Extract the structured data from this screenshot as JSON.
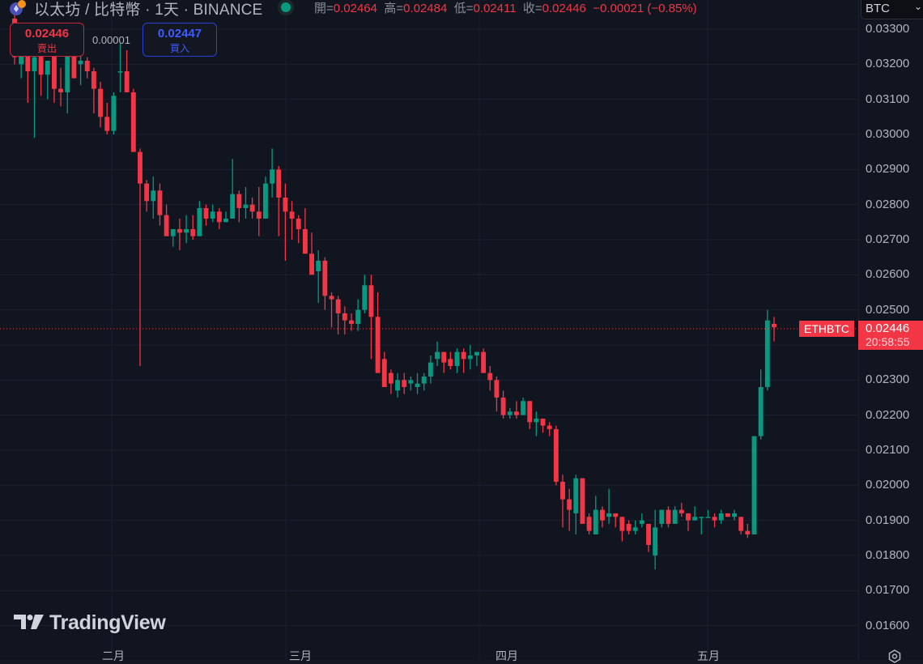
{
  "header": {
    "title": "以太坊 / 比特幣 · 1天 · BINANCE",
    "ohlc": [
      {
        "key": "開=",
        "value": "0.02464"
      },
      {
        "key": "高=",
        "value": "0.02484"
      },
      {
        "key": "低=",
        "value": "0.02411"
      },
      {
        "key": "收=",
        "value": "0.02446"
      }
    ],
    "change": "−0.00021 (−0.85%)"
  },
  "trade": {
    "sell_price": "0.02446",
    "sell_label": "賣出",
    "spread": "0.00001",
    "buy_price": "0.02447",
    "buy_label": "買入"
  },
  "price_axis": {
    "currency": "BTC",
    "labels": [
      "0.03300",
      "0.03200",
      "0.03100",
      "0.03000",
      "0.02900",
      "0.02800",
      "0.02700",
      "0.02600",
      "0.02500",
      "0.02400",
      "0.02300",
      "0.02200",
      "0.02100",
      "0.02000",
      "0.01900",
      "0.01800",
      "0.01700",
      "0.01600"
    ]
  },
  "last_price": {
    "symbol": "ETHBTC",
    "price": "0.02446",
    "countdown": "20:58:55"
  },
  "time_axis": {
    "months": [
      "二月",
      "三月",
      "四月",
      "五月"
    ]
  },
  "branding": {
    "logo_text": "TradingView"
  },
  "colors": {
    "up": "#089981",
    "down": "#f23645",
    "background": "#111520",
    "grid": "#1c2030",
    "text": "#b2b5be"
  },
  "chart_data": {
    "type": "candlestick",
    "title": "以太坊 / 比特幣 · 1天 · BINANCE",
    "symbol": "ETHBTC",
    "interval": "1D",
    "exchange": "BINANCE",
    "xlabel": "",
    "ylabel": "BTC",
    "ylim": [
      0.0157,
      0.0334
    ],
    "x_ticks": [
      "二月",
      "三月",
      "四月",
      "五月"
    ],
    "y_ticks": [
      0.033,
      0.032,
      0.031,
      0.03,
      0.029,
      0.028,
      0.027,
      0.026,
      0.025,
      0.024,
      0.023,
      0.022,
      0.021,
      0.02,
      0.019,
      0.018,
      0.017,
      0.016
    ],
    "grid": true,
    "last": {
      "open": 0.02464,
      "high": 0.02484,
      "low": 0.02411,
      "close": 0.02446,
      "change": -0.00021,
      "change_pct": -0.85
    },
    "ohlc": [
      [
        0.0333,
        0.0335,
        0.032,
        0.0322
      ],
      [
        0.032,
        0.0325,
        0.0316,
        0.0323
      ],
      [
        0.0323,
        0.0325,
        0.0309,
        0.0318
      ],
      [
        0.0318,
        0.0323,
        0.0299,
        0.0322
      ],
      [
        0.0324,
        0.0326,
        0.0311,
        0.0317
      ],
      [
        0.0317,
        0.0318,
        0.031,
        0.0321
      ],
      [
        0.0324,
        0.0324,
        0.0309,
        0.0313
      ],
      [
        0.0313,
        0.0319,
        0.0308,
        0.0312
      ],
      [
        0.0312,
        0.0324,
        0.0306,
        0.0324
      ],
      [
        0.0324,
        0.0325,
        0.0317,
        0.0316
      ],
      [
        0.032,
        0.0323,
        0.0314,
        0.0321
      ],
      [
        0.0321,
        0.0322,
        0.0316,
        0.0318
      ],
      [
        0.0318,
        0.0319,
        0.0306,
        0.0313
      ],
      [
        0.0313,
        0.0315,
        0.0302,
        0.0305
      ],
      [
        0.0305,
        0.0309,
        0.03,
        0.0301
      ],
      [
        0.0301,
        0.0312,
        0.03,
        0.0311
      ],
      [
        0.0318,
        0.0326,
        0.0312,
        0.0318
      ],
      [
        0.0318,
        0.0324,
        0.0312,
        0.0312
      ],
      [
        0.0312,
        0.0313,
        0.0297,
        0.0295
      ],
      [
        0.0295,
        0.0296,
        0.0234,
        0.0286
      ],
      [
        0.0286,
        0.0287,
        0.0278,
        0.0281
      ],
      [
        0.0281,
        0.0288,
        0.0276,
        0.0284
      ],
      [
        0.0284,
        0.0286,
        0.0274,
        0.0277
      ],
      [
        0.0277,
        0.028,
        0.0271,
        0.0271
      ],
      [
        0.0271,
        0.0273,
        0.0268,
        0.0273
      ],
      [
        0.0273,
        0.0276,
        0.0267,
        0.0272
      ],
      [
        0.0272,
        0.0277,
        0.0269,
        0.0273
      ],
      [
        0.0273,
        0.0277,
        0.027,
        0.0271
      ],
      [
        0.0271,
        0.0281,
        0.0272,
        0.0279
      ],
      [
        0.0279,
        0.028,
        0.0274,
        0.0276
      ],
      [
        0.0276,
        0.028,
        0.0275,
        0.0278
      ],
      [
        0.0278,
        0.0279,
        0.0273,
        0.0275
      ],
      [
        0.0275,
        0.0278,
        0.0275,
        0.0276
      ],
      [
        0.0276,
        0.0293,
        0.0276,
        0.0283
      ],
      [
        0.0283,
        0.0284,
        0.0275,
        0.0279
      ],
      [
        0.0279,
        0.0285,
        0.0276,
        0.028
      ],
      [
        0.028,
        0.0282,
        0.0276,
        0.0278
      ],
      [
        0.0278,
        0.0285,
        0.0271,
        0.0276
      ],
      [
        0.0276,
        0.0288,
        0.0276,
        0.0286
      ],
      [
        0.0286,
        0.0296,
        0.0282,
        0.029
      ],
      [
        0.029,
        0.0291,
        0.0271,
        0.0282
      ],
      [
        0.0282,
        0.0286,
        0.0264,
        0.0278
      ],
      [
        0.0278,
        0.0281,
        0.027,
        0.0276
      ],
      [
        0.0276,
        0.0277,
        0.0269,
        0.0273
      ],
      [
        0.0273,
        0.0279,
        0.0267,
        0.0266
      ],
      [
        0.0266,
        0.0272,
        0.0261,
        0.026
      ],
      [
        0.0261,
        0.0267,
        0.0252,
        0.0264
      ],
      [
        0.0264,
        0.0265,
        0.025,
        0.0254
      ],
      [
        0.0254,
        0.0255,
        0.0245,
        0.0253
      ],
      [
        0.0253,
        0.0254,
        0.0243,
        0.0249
      ],
      [
        0.0249,
        0.0251,
        0.0243,
        0.0247
      ],
      [
        0.0247,
        0.0249,
        0.0244,
        0.0246
      ],
      [
        0.0246,
        0.0253,
        0.0244,
        0.025
      ],
      [
        0.025,
        0.026,
        0.0249,
        0.0257
      ],
      [
        0.0257,
        0.026,
        0.0236,
        0.0248
      ],
      [
        0.0248,
        0.0255,
        0.0243,
        0.0232
      ],
      [
        0.0236,
        0.0238,
        0.0229,
        0.0228
      ],
      [
        0.0232,
        0.0233,
        0.0226,
        0.0229
      ],
      [
        0.0227,
        0.0232,
        0.0225,
        0.023
      ],
      [
        0.023,
        0.0232,
        0.0226,
        0.0228
      ],
      [
        0.0229,
        0.0231,
        0.0227,
        0.023
      ],
      [
        0.0228,
        0.0232,
        0.0226,
        0.0229
      ],
      [
        0.0229,
        0.0232,
        0.0227,
        0.0231
      ],
      [
        0.0231,
        0.0237,
        0.0229,
        0.0235
      ],
      [
        0.0236,
        0.0241,
        0.0234,
        0.0238
      ],
      [
        0.0238,
        0.0238,
        0.0232,
        0.0235
      ],
      [
        0.0236,
        0.0238,
        0.0233,
        0.0234
      ],
      [
        0.0234,
        0.0239,
        0.0232,
        0.0238
      ],
      [
        0.0238,
        0.0239,
        0.0232,
        0.0236
      ],
      [
        0.0236,
        0.024,
        0.0233,
        0.0237
      ],
      [
        0.0237,
        0.0238,
        0.0234,
        0.0238
      ],
      [
        0.0238,
        0.0239,
        0.0232,
        0.0232
      ],
      [
        0.0232,
        0.0234,
        0.0227,
        0.023
      ],
      [
        0.023,
        0.0231,
        0.0221,
        0.0225
      ],
      [
        0.0225,
        0.0227,
        0.0219,
        0.022
      ],
      [
        0.022,
        0.0222,
        0.0219,
        0.0221
      ],
      [
        0.0221,
        0.0224,
        0.0219,
        0.022
      ],
      [
        0.022,
        0.0225,
        0.022,
        0.0224
      ],
      [
        0.0224,
        0.0224,
        0.0216,
        0.0218
      ],
      [
        0.0218,
        0.0221,
        0.0214,
        0.0219
      ],
      [
        0.0219,
        0.0219,
        0.0215,
        0.0217
      ],
      [
        0.0217,
        0.0218,
        0.0214,
        0.0216
      ],
      [
        0.0216,
        0.0217,
        0.02,
        0.0201
      ],
      [
        0.0201,
        0.0203,
        0.0188,
        0.0196
      ],
      [
        0.0196,
        0.0199,
        0.0187,
        0.0193
      ],
      [
        0.0192,
        0.0203,
        0.0186,
        0.0202
      ],
      [
        0.0202,
        0.0202,
        0.0189,
        0.0189
      ],
      [
        0.0191,
        0.0192,
        0.0186,
        0.0187
      ],
      [
        0.0186,
        0.0197,
        0.0187,
        0.0193
      ],
      [
        0.0193,
        0.0194,
        0.0188,
        0.019
      ],
      [
        0.0191,
        0.0199,
        0.0189,
        0.0192
      ],
      [
        0.0192,
        0.0192,
        0.0188,
        0.0191
      ],
      [
        0.0191,
        0.0191,
        0.0184,
        0.0187
      ],
      [
        0.0189,
        0.019,
        0.0186,
        0.0187
      ],
      [
        0.0187,
        0.019,
        0.0186,
        0.0188
      ],
      [
        0.0189,
        0.0192,
        0.0188,
        0.019
      ],
      [
        0.0189,
        0.0189,
        0.0181,
        0.0183
      ],
      [
        0.018,
        0.0193,
        0.0176,
        0.0188
      ],
      [
        0.0189,
        0.0193,
        0.0188,
        0.0193
      ],
      [
        0.0193,
        0.0194,
        0.0188,
        0.0189
      ],
      [
        0.0189,
        0.0194,
        0.0189,
        0.0193
      ],
      [
        0.0193,
        0.0195,
        0.0191,
        0.0192
      ],
      [
        0.0192,
        0.0192,
        0.0187,
        0.019
      ],
      [
        0.019,
        0.0194,
        0.019,
        0.0191
      ],
      [
        0.0191,
        0.0191,
        0.0186,
        0.0191
      ],
      [
        0.0191,
        0.0193,
        0.0191,
        0.0191
      ],
      [
        0.0191,
        0.0192,
        0.0188,
        0.019
      ],
      [
        0.019,
        0.0193,
        0.0189,
        0.0192
      ],
      [
        0.0192,
        0.0192,
        0.0191,
        0.0191
      ],
      [
        0.0191,
        0.0193,
        0.019,
        0.0192
      ],
      [
        0.0191,
        0.0191,
        0.0186,
        0.0187
      ],
      [
        0.0187,
        0.0189,
        0.0185,
        0.0186
      ],
      [
        0.0186,
        0.0214,
        0.0186,
        0.0214
      ],
      [
        0.0214,
        0.0233,
        0.0213,
        0.0228
      ],
      [
        0.0228,
        0.025,
        0.0227,
        0.0247
      ],
      [
        0.0246,
        0.0248,
        0.0241,
        0.0245
      ]
    ]
  }
}
